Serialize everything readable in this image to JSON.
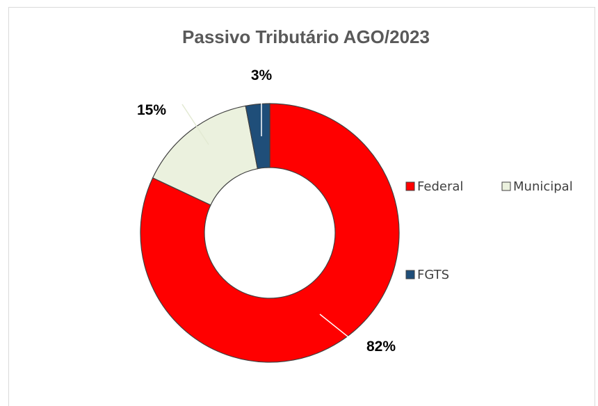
{
  "chart_data": {
    "type": "pie",
    "title": "Passivo Tributário AGO/2023",
    "categories": [
      "Federal",
      "Municipal",
      "FGTS"
    ],
    "values": [
      82,
      15,
      3
    ],
    "data_labels": [
      "82%",
      "15%",
      "3%"
    ],
    "colors": [
      "#ff0000",
      "#ebf1de",
      "#1f4e79"
    ],
    "legend_position": "right",
    "style": "donut"
  }
}
